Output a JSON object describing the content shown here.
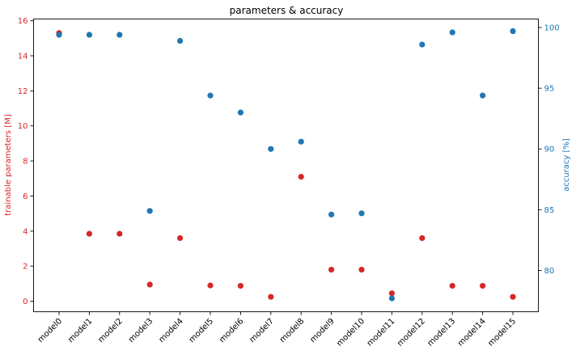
{
  "chart_data": {
    "type": "scatter",
    "title": "parameters & accuracy",
    "categories": [
      "model0",
      "model1",
      "model2",
      "model3",
      "model4",
      "model5",
      "model6",
      "model7",
      "model8",
      "model9",
      "model10",
      "model11",
      "model12",
      "model13",
      "model14",
      "model15"
    ],
    "series": [
      {
        "axis": "left",
        "color": "#d62728",
        "values": [
          15.3,
          3.85,
          3.85,
          0.95,
          3.6,
          0.9,
          0.88,
          0.25,
          7.1,
          1.8,
          1.8,
          0.45,
          3.6,
          0.88,
          0.88,
          0.25
        ]
      },
      {
        "axis": "right",
        "color": "#1f77b4",
        "values": [
          99.4,
          99.4,
          99.4,
          84.9,
          98.9,
          94.4,
          93.0,
          90.0,
          90.6,
          84.6,
          84.7,
          77.7,
          98.6,
          99.6,
          94.4,
          99.7
        ]
      }
    ],
    "y_left": {
      "label": "trainable parameters [M]",
      "color": "#d62728",
      "ylim": [
        -0.6,
        16.1
      ],
      "ticks": [
        0,
        2,
        4,
        6,
        8,
        10,
        12,
        14,
        16
      ]
    },
    "y_right": {
      "label": "accuracy [%]",
      "color": "#1f77b4",
      "ylim": [
        76.6,
        100.7
      ],
      "ticks": [
        80,
        85,
        90,
        95,
        100
      ]
    },
    "grid": false,
    "legend": "none"
  }
}
